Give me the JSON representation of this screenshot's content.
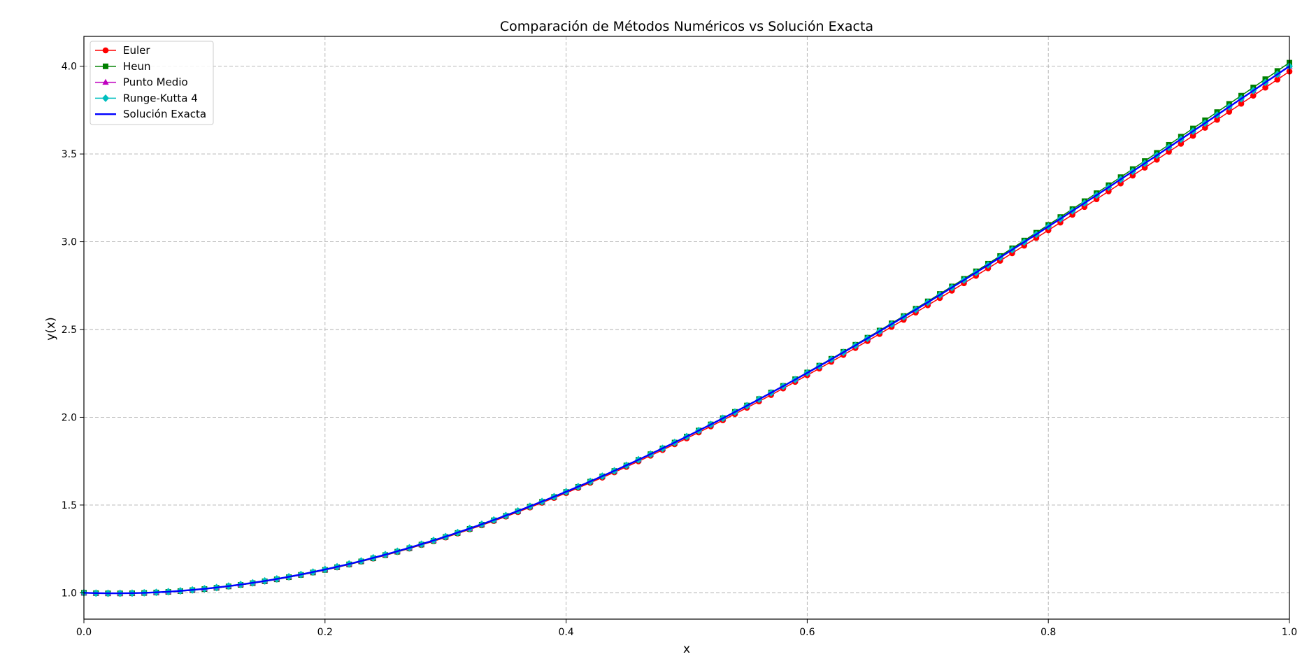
{
  "chart_data": {
    "type": "line",
    "title": "Comparación de Métodos Numéricos vs Solución Exacta",
    "xlabel": "x",
    "ylabel": "y(x)",
    "xlim": [
      0.0,
      1.0
    ],
    "ylim": [
      0.85,
      4.17
    ],
    "x_ticks": [
      "0.0",
      "0.2",
      "0.4",
      "0.6",
      "0.8",
      "1.0"
    ],
    "y_ticks": [
      "1.0",
      "1.5",
      "2.0",
      "2.5",
      "3.0",
      "3.5",
      "4.0"
    ],
    "grid": true,
    "legend_position": "top-left",
    "x": {
      "start": 0.0,
      "stop": 1.0,
      "step": 0.01
    },
    "series": [
      {
        "name": "Euler",
        "color": "#ff0000",
        "marker": "circle",
        "values_at_x": {
          "0.0": 1.0,
          "0.5": 1.88,
          "1.0": 3.97
        }
      },
      {
        "name": "Heun",
        "color": "#008000",
        "marker": "square",
        "values_at_x": {
          "0.0": 1.0,
          "0.5": 1.89,
          "1.0": 4.02
        }
      },
      {
        "name": "Punto Medio",
        "color": "#bf00bf",
        "marker": "triangle",
        "values_at_x": {
          "0.0": 1.0,
          "0.5": 1.89,
          "1.0": 4.0
        }
      },
      {
        "name": "Runge-Kutta 4",
        "color": "#00bfbf",
        "marker": "diamond",
        "values_at_x": {
          "0.0": 1.0,
          "0.5": 1.89,
          "1.0": 4.0
        }
      },
      {
        "name": "Solución Exacta",
        "color": "#0000ff",
        "marker": "none",
        "values_at_x": {
          "0.0": 1.0,
          "0.5": 1.89,
          "1.0": 4.0
        }
      }
    ]
  }
}
